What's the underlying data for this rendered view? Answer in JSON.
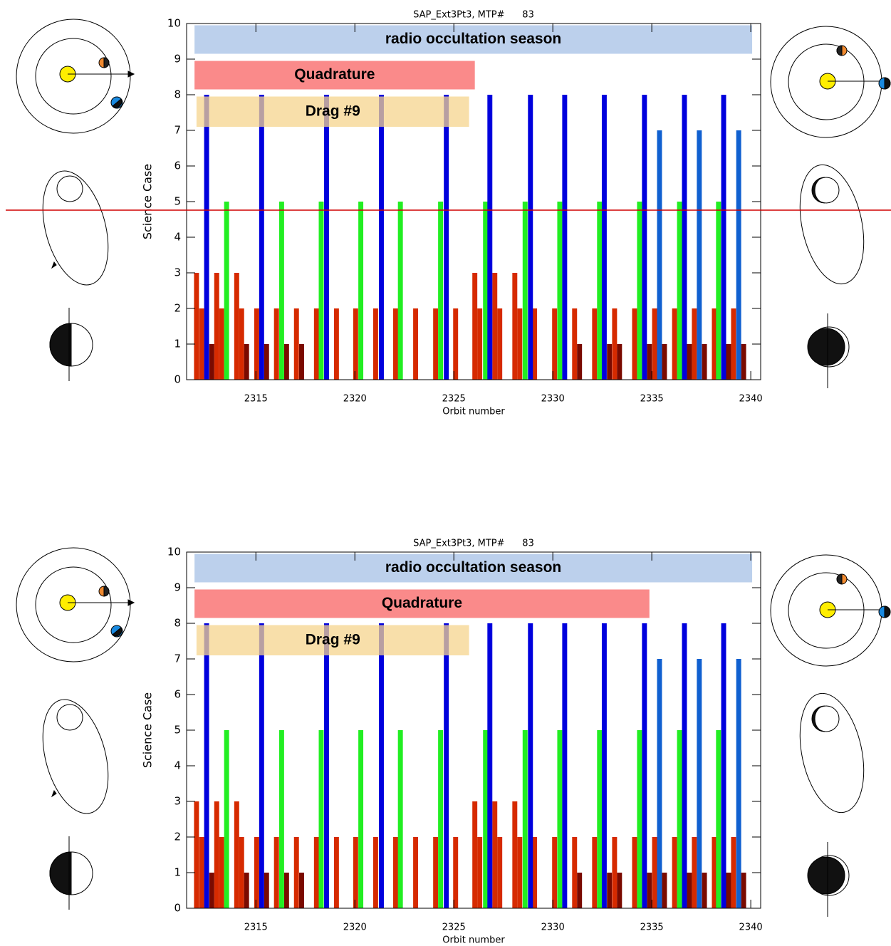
{
  "chart_data": [
    {
      "type": "bar",
      "title": "SAP_Ext3Pt3, MTP#      83",
      "x_label": "Orbit number",
      "y_label": "Science Case",
      "xlim": [
        2311.5,
        2340.5
      ],
      "xticks": [
        2315,
        2320,
        2325,
        2330,
        2335,
        2340
      ],
      "ylim": [
        0,
        10
      ],
      "yticks": [
        0,
        1,
        2,
        3,
        4,
        5,
        6,
        7,
        8,
        9,
        10
      ],
      "bands": [
        {
          "label": "radio occultation season",
          "color": "#bcd0ec",
          "x": [
            2311.9,
            2340.07
          ],
          "y": [
            9.15,
            9.95
          ]
        },
        {
          "label": "Quadrature",
          "color": "#fa8a8a",
          "x": [
            2311.9,
            2326.06
          ],
          "y": [
            8.15,
            8.95
          ]
        },
        {
          "label": "Drag #9",
          "color": "#f6d48e",
          "x": [
            2312.0,
            2325.77
          ],
          "y": [
            7.1,
            7.95
          ]
        }
      ],
      "series": [
        {
          "color": "#d62a00",
          "x": [
            2312.0,
            2313.02,
            2314.03,
            2326.06,
            2327.07,
            2328.08
          ],
          "values": [
            3,
            3,
            3,
            3,
            3,
            3
          ]
        },
        {
          "color": "#d62a00",
          "x": [
            2312.26,
            2313.27,
            2314.28,
            2315.04,
            2316.04,
            2317.05,
            2318.06,
            2319.07,
            2320.04,
            2321.05,
            2322.06,
            2323.07,
            2324.08,
            2325.09,
            2326.31,
            2327.32,
            2328.33,
            2329.08,
            2330.09,
            2331.1,
            2332.11,
            2333.12,
            2334.13,
            2335.14,
            2336.15,
            2337.15,
            2338.16,
            2339.13
          ],
          "values": [
            2,
            2,
            2,
            2,
            2,
            2,
            2,
            2,
            2,
            2,
            2,
            2,
            2,
            2,
            2,
            2,
            2,
            2,
            2,
            2,
            2,
            2,
            2,
            2,
            2,
            2,
            2,
            2
          ]
        },
        {
          "color": "#7a0a00",
          "x": [
            2312.77,
            2314.53,
            2315.54,
            2316.55,
            2317.31,
            2331.35,
            2332.86,
            2333.37,
            2334.88,
            2335.64,
            2336.9,
            2337.66,
            2338.88,
            2339.64
          ],
          "values": [
            1,
            1,
            1,
            1,
            1,
            1,
            1,
            1,
            1,
            1,
            1,
            1,
            1,
            1
          ]
        },
        {
          "color": "#22ee22",
          "x": [
            2313.52,
            2316.3,
            2318.3,
            2320.3,
            2322.3,
            2324.33,
            2326.6,
            2328.6,
            2330.35,
            2332.36,
            2334.38,
            2336.4,
            2338.37
          ],
          "values": [
            5,
            5,
            5,
            5,
            5,
            5,
            5,
            5,
            5,
            5,
            5,
            5,
            5
          ]
        },
        {
          "color": "#0000dd",
          "x": [
            2312.51,
            2315.29,
            2318.57,
            2321.34,
            2324.62,
            2326.82,
            2328.87,
            2330.6,
            2332.6,
            2334.63,
            2336.65,
            2338.63
          ],
          "values": [
            8,
            8,
            8,
            8,
            8,
            8,
            8,
            8,
            8,
            8,
            8,
            8
          ]
        },
        {
          "color": "#1060d0",
          "x": [
            2335.39,
            2337.4,
            2339.39
          ],
          "values": [
            7,
            7,
            7
          ]
        }
      ]
    },
    {
      "type": "bar",
      "title": "SAP_Ext3Pt3, MTP#      83",
      "x_label": "Orbit number",
      "y_label": "Science Case",
      "xlim": [
        2311.5,
        2340.5
      ],
      "xticks": [
        2315,
        2320,
        2325,
        2330,
        2335,
        2340
      ],
      "ylim": [
        0,
        10
      ],
      "yticks": [
        0,
        1,
        2,
        3,
        4,
        5,
        6,
        7,
        8,
        9,
        10
      ],
      "bands": [
        {
          "label": "radio occultation season",
          "color": "#bcd0ec",
          "x": [
            2311.9,
            2340.07
          ],
          "y": [
            9.15,
            9.95
          ]
        },
        {
          "label": "Quadrature",
          "color": "#fa8a8a",
          "x": [
            2311.9,
            2334.88
          ],
          "y": [
            8.15,
            8.95
          ]
        },
        {
          "label": "Drag #9",
          "color": "#f6d48e",
          "x": [
            2312.0,
            2325.77
          ],
          "y": [
            7.1,
            7.95
          ]
        }
      ],
      "series": [
        {
          "color": "#d62a00",
          "x": [
            2312.0,
            2313.02,
            2314.03,
            2326.06,
            2327.07,
            2328.08
          ],
          "values": [
            3,
            3,
            3,
            3,
            3,
            3
          ]
        },
        {
          "color": "#d62a00",
          "x": [
            2312.26,
            2313.27,
            2314.28,
            2315.04,
            2316.04,
            2317.05,
            2318.06,
            2319.07,
            2320.04,
            2321.05,
            2322.06,
            2323.07,
            2324.08,
            2325.09,
            2326.31,
            2327.32,
            2328.33,
            2329.08,
            2330.09,
            2331.1,
            2332.11,
            2333.12,
            2334.13,
            2335.14,
            2336.15,
            2337.15,
            2338.16,
            2339.13
          ],
          "values": [
            2,
            2,
            2,
            2,
            2,
            2,
            2,
            2,
            2,
            2,
            2,
            2,
            2,
            2,
            2,
            2,
            2,
            2,
            2,
            2,
            2,
            2,
            2,
            2,
            2,
            2,
            2,
            2
          ]
        },
        {
          "color": "#7a0a00",
          "x": [
            2312.77,
            2314.53,
            2315.54,
            2316.55,
            2317.31,
            2331.35,
            2332.86,
            2333.37,
            2334.88,
            2335.64,
            2336.9,
            2337.66,
            2338.88,
            2339.64
          ],
          "values": [
            1,
            1,
            1,
            1,
            1,
            1,
            1,
            1,
            1,
            1,
            1,
            1,
            1,
            1
          ]
        },
        {
          "color": "#22ee22",
          "x": [
            2313.52,
            2316.3,
            2318.3,
            2320.3,
            2322.3,
            2324.33,
            2326.6,
            2328.6,
            2330.35,
            2332.36,
            2334.38,
            2336.4,
            2338.37
          ],
          "values": [
            5,
            5,
            5,
            5,
            5,
            5,
            5,
            5,
            5,
            5,
            5,
            5,
            5
          ]
        },
        {
          "color": "#0000dd",
          "x": [
            2312.51,
            2315.29,
            2318.57,
            2321.34,
            2324.62,
            2326.82,
            2328.87,
            2330.6,
            2332.6,
            2334.63,
            2336.65,
            2338.63
          ],
          "values": [
            8,
            8,
            8,
            8,
            8,
            8,
            8,
            8,
            8,
            8,
            8,
            8
          ]
        },
        {
          "color": "#1060d0",
          "x": [
            2335.39,
            2337.4,
            2339.39
          ],
          "values": [
            7,
            7,
            7
          ]
        }
      ]
    }
  ]
}
